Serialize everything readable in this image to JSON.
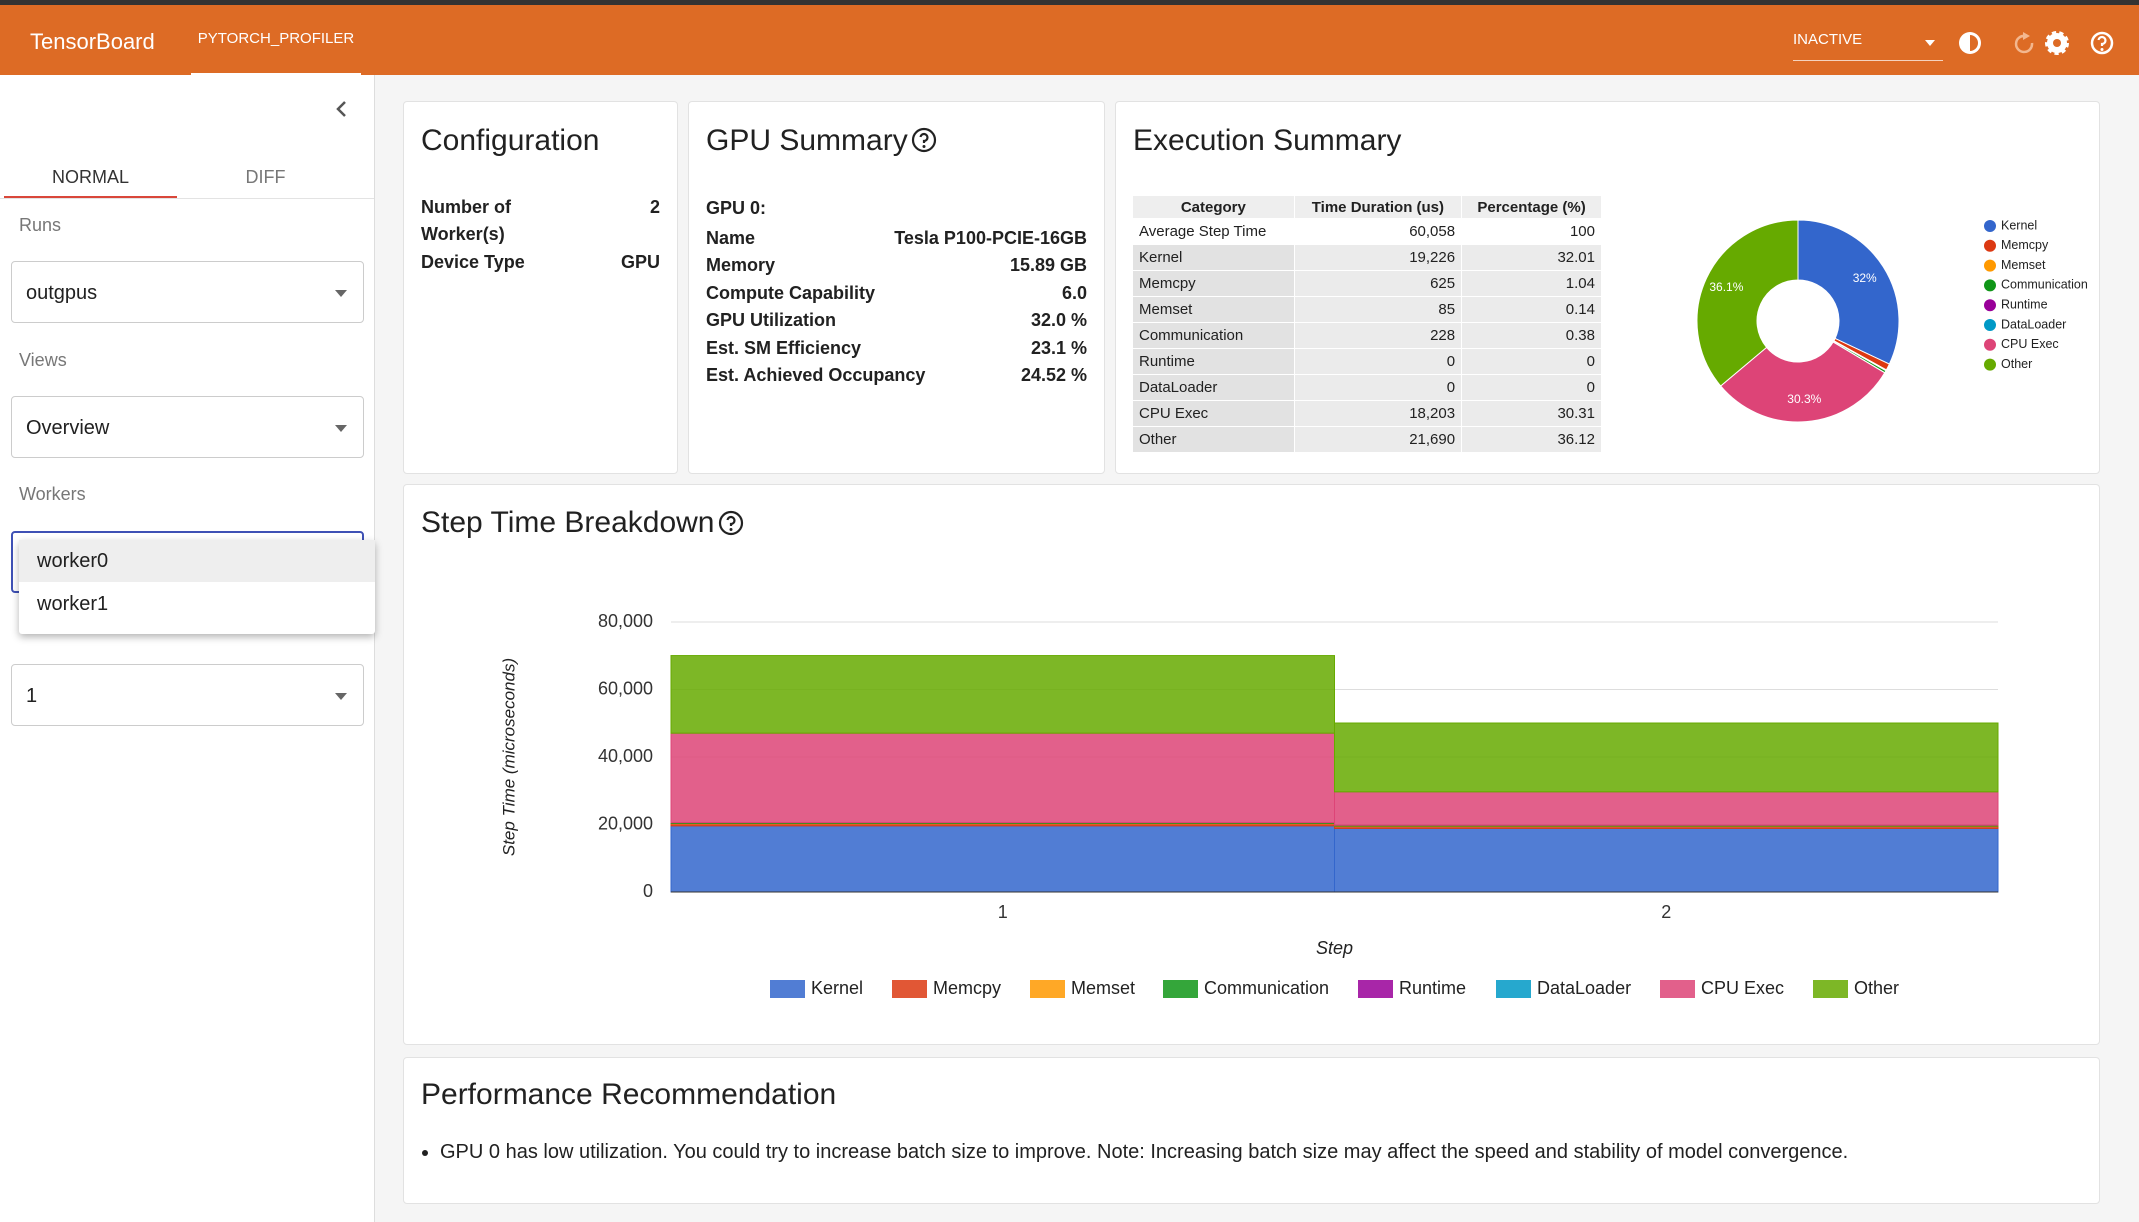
{
  "header": {
    "brand": "TensorBoard",
    "tab": "PYTORCH_PROFILER",
    "status": "INACTIVE"
  },
  "sidebar": {
    "tabs": [
      "NORMAL",
      "DIFF"
    ],
    "runs_label": "Runs",
    "run": "outgpus",
    "views_label": "Views",
    "view": "Overview",
    "workers_label": "Workers",
    "worker_options": [
      "worker0",
      "worker1"
    ],
    "span": "1"
  },
  "configuration": {
    "title": "Configuration",
    "rows": [
      [
        "Number of Worker(s)",
        "2"
      ],
      [
        "Device Type",
        "GPU"
      ]
    ]
  },
  "gpu_summary": {
    "title": "GPU Summary",
    "gpu_label": "GPU 0:",
    "rows": [
      [
        "Name",
        "Tesla P100-PCIE-16GB"
      ],
      [
        "Memory",
        "15.89 GB"
      ],
      [
        "Compute Capability",
        "6.0"
      ],
      [
        "GPU Utilization",
        "32.0 %"
      ],
      [
        "Est. SM Efficiency",
        "23.1 %"
      ],
      [
        "Est. Achieved Occupancy",
        "24.52 %"
      ]
    ]
  },
  "execution_summary": {
    "title": "Execution Summary",
    "table": {
      "header": [
        "Category",
        "Time Duration (us)",
        "Percentage (%)"
      ],
      "rows": [
        [
          "Average Step Time",
          "60,058",
          "100"
        ],
        [
          "Kernel",
          "19,226",
          "32.01"
        ],
        [
          "Memcpy",
          "625",
          "1.04"
        ],
        [
          "Memset",
          "85",
          "0.14"
        ],
        [
          "Communication",
          "228",
          "0.38"
        ],
        [
          "Runtime",
          "0",
          "0"
        ],
        [
          "DataLoader",
          "0",
          "0"
        ],
        [
          "CPU Exec",
          "18,203",
          "30.31"
        ],
        [
          "Other",
          "21,690",
          "36.12"
        ]
      ]
    }
  },
  "recommendation": {
    "title": "Performance Recommendation",
    "items": [
      "GPU 0 has low utilization. You could try to increase batch size to improve. Note: Increasing batch size may affect the speed and stability of model convergence."
    ]
  },
  "chart_data": [
    {
      "type": "pie",
      "labels": [
        "Kernel",
        "Memcpy",
        "Memset",
        "Communication",
        "Runtime",
        "DataLoader",
        "CPU Exec",
        "Other"
      ],
      "values": [
        32.01,
        1.04,
        0.14,
        0.38,
        0,
        0,
        30.31,
        36.12
      ],
      "value_labels": [
        "32%",
        null,
        null,
        null,
        null,
        null,
        "30.3%",
        "36.1%"
      ],
      "colors": [
        "#3366cc",
        "#dc3912",
        "#ff9900",
        "#109618",
        "#990099",
        "#0099c6",
        "#dd4477",
        "#66aa00"
      ],
      "donut": true,
      "legend": "right"
    },
    {
      "type": "bar",
      "stacked": true,
      "title": "Step Time Breakdown",
      "x_label": "Step",
      "y_label": "Step Time (microseconds)",
      "categories": [
        "1",
        "2"
      ],
      "series": [
        {
          "name": "Kernel",
          "color": "#3366cc",
          "values": [
            19600,
            18850
          ]
        },
        {
          "name": "Memcpy",
          "color": "#dc3912",
          "values": [
            640,
            610
          ]
        },
        {
          "name": "Memset",
          "color": "#ff9900",
          "values": [
            85,
            85
          ]
        },
        {
          "name": "Communication",
          "color": "#109618",
          "values": [
            230,
            226
          ]
        },
        {
          "name": "Runtime",
          "color": "#990099",
          "values": [
            0,
            0
          ]
        },
        {
          "name": "DataLoader",
          "color": "#0099c6",
          "values": [
            0,
            0
          ]
        },
        {
          "name": "CPU Exec",
          "color": "#dd4477",
          "values": [
            26500,
            9900
          ]
        },
        {
          "name": "Other",
          "color": "#66aa00",
          "values": [
            23000,
            20400
          ]
        }
      ],
      "ylim": [
        0,
        80000
      ],
      "yticks": [
        0,
        {
          "value": 20000,
          "label": "20,000"
        },
        {
          "value": 40000,
          "label": "40,000"
        },
        {
          "value": 60000,
          "label": "60,000"
        },
        {
          "value": 80000,
          "label": "80,000"
        }
      ],
      "grid": true,
      "legend": "bottom"
    }
  ]
}
